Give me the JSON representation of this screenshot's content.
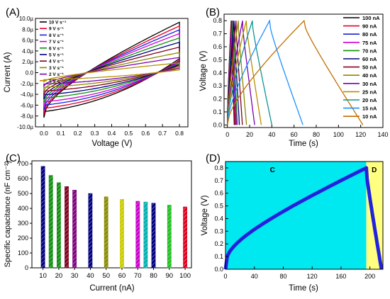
{
  "chart_data": [
    {
      "panel_label": "(A)",
      "type": "line",
      "xlabel": "Voltage (V)",
      "ylabel": "Current (A)",
      "xlim": [
        -0.05,
        0.85
      ],
      "ylim": [
        -10,
        10
      ],
      "xticks": [
        "0.0",
        "0.1",
        "0.2",
        "0.3",
        "0.4",
        "0.5",
        "0.6",
        "0.7",
        "0.8"
      ],
      "yticks": [
        "10.0µ",
        "8.0µ",
        "6.0µ",
        "4.0µ",
        "2.0µ",
        "0.0",
        "-2.0µ",
        "-4.0µ",
        "-6.0µ",
        "-8.0µ",
        "-10.0µ"
      ],
      "ytick_values": [
        10,
        8,
        6,
        4,
        2,
        0,
        -2,
        -4,
        -6,
        -8,
        -10
      ],
      "legend_position": "top-left",
      "series": [
        {
          "name": "10 V s⁻¹",
          "color": "#000000",
          "upper_max": 9.3,
          "upper_min": -8.3,
          "lower_max": 2.6,
          "lower_min": -7.2
        },
        {
          "name": "9 V s⁻¹",
          "color": "#e8002a",
          "upper_max": 8.6,
          "upper_min": -7.7,
          "lower_max": 2.3,
          "lower_min": -6.6
        },
        {
          "name": "8 V s⁻¹",
          "color": "#1a22d6",
          "upper_max": 7.9,
          "upper_min": -7.0,
          "lower_max": 2.1,
          "lower_min": -6.0
        },
        {
          "name": "7 V s⁻¹",
          "color": "#d400d4",
          "upper_max": 7.2,
          "upper_min": -6.3,
          "lower_max": 1.9,
          "lower_min": -5.4
        },
        {
          "name": "6 V s⁻¹",
          "color": "#109010",
          "upper_max": 6.4,
          "upper_min": -5.6,
          "lower_max": 1.7,
          "lower_min": -4.7
        },
        {
          "name": "5 V s⁻¹",
          "color": "#000080",
          "upper_max": 5.6,
          "upper_min": -4.9,
          "lower_max": 1.5,
          "lower_min": -4.1
        },
        {
          "name": "4 V s⁻¹",
          "color": "#800020",
          "upper_max": 4.7,
          "upper_min": -4.1,
          "lower_max": 1.3,
          "lower_min": -3.4
        },
        {
          "name": "3 V s⁻¹",
          "color": "#8a8a00",
          "upper_max": 3.7,
          "upper_min": -3.3,
          "lower_max": 1.0,
          "lower_min": -2.7
        },
        {
          "name": "2 V s⁻¹",
          "color": "#7b00b0",
          "upper_max": 2.8,
          "upper_min": -2.5,
          "lower_max": 0.8,
          "lower_min": -2.1
        },
        {
          "name": "1 V s⁻¹",
          "color": "#b89000",
          "upper_max": 1.8,
          "upper_min": -1.7,
          "lower_max": 0.5,
          "lower_min": -1.3
        }
      ]
    },
    {
      "panel_label": "(B)",
      "type": "line",
      "xlabel": "Time (s)",
      "ylabel": "Voltage (V)",
      "xlim": [
        -3,
        140
      ],
      "ylim": [
        -0.02,
        0.85
      ],
      "xticks": [
        0,
        20,
        40,
        60,
        80,
        100,
        120,
        140
      ],
      "yticks": [
        0.0,
        0.1,
        0.2,
        0.3,
        0.4,
        0.5,
        0.6,
        0.7,
        0.8
      ],
      "legend_position": "top-right",
      "series": [
        {
          "name": "100 nA",
          "color": "#000000",
          "t_peak": 3.4,
          "t_end": 6.2
        },
        {
          "name": "90 nA",
          "color": "#e8002a",
          "t_peak": 3.8,
          "t_end": 6.8
        },
        {
          "name": "80 nA",
          "color": "#1a22d6",
          "t_peak": 4.3,
          "t_end": 7.6
        },
        {
          "name": "75 nA",
          "color": "#d400d4",
          "t_peak": 4.6,
          "t_end": 8.2
        },
        {
          "name": "70 nA",
          "color": "#109010",
          "t_peak": 5.1,
          "t_end": 9.0
        },
        {
          "name": "60 nA",
          "color": "#000080",
          "t_peak": 6.0,
          "t_end": 10.8
        },
        {
          "name": "50 nA",
          "color": "#800020",
          "t_peak": 7.7,
          "t_end": 13.5
        },
        {
          "name": "40 nA",
          "color": "#8a8a00",
          "t_peak": 9.8,
          "t_end": 17.2
        },
        {
          "name": "30 nA",
          "color": "#7b00b0",
          "t_peak": 13.6,
          "t_end": 24.5
        },
        {
          "name": "25 nA",
          "color": "#b89000",
          "t_peak": 17.0,
          "t_end": 30.5
        },
        {
          "name": "20 nA",
          "color": "#0e9494",
          "t_peak": 22.5,
          "t_end": 40.0
        },
        {
          "name": "15 nA",
          "color": "#1e90ff",
          "t_peak": 38.0,
          "t_end": 68.0
        },
        {
          "name": "10 nA",
          "color": "#c07000",
          "t_peak": 69.0,
          "t_end": 122.0
        }
      ]
    },
    {
      "panel_label": "(C)",
      "type": "bar",
      "xlabel": "Current (nA)",
      "ylabel": "Specific capacitance (nF cm⁻²)",
      "ylim": [
        0,
        720
      ],
      "yticks": [
        0,
        100,
        200,
        300,
        400,
        500,
        600,
        700
      ],
      "xticks": [
        10,
        20,
        30,
        40,
        50,
        60,
        70,
        80,
        90,
        100
      ],
      "xlim": [
        3,
        104
      ],
      "categories": [
        10,
        15,
        20,
        25,
        30,
        40,
        50,
        60,
        70,
        75,
        80,
        90,
        100
      ],
      "values": [
        683,
        622,
        573,
        547,
        523,
        500,
        478,
        461,
        448,
        443,
        435,
        422,
        410
      ],
      "colors": [
        "#000080",
        "#109010",
        "#109010",
        "#800020",
        "#800080",
        "#000080",
        "#8a8a00",
        "#cccc00",
        "#cc00cc",
        "#00b0b0",
        "#000080",
        "#20c020",
        "#e00020"
      ]
    },
    {
      "panel_label": "(D)",
      "type": "line",
      "xlabel": "Time (s)",
      "ylabel": "Voltage (V)",
      "xlim": [
        0,
        218
      ],
      "ylim": [
        0,
        0.85
      ],
      "xticks": [
        0,
        40,
        80,
        120,
        160,
        200
      ],
      "yticks": [
        0.0,
        0.1,
        0.2,
        0.3,
        0.4,
        0.5,
        0.6,
        0.7,
        0.8
      ],
      "region_labels": [
        "C",
        "D"
      ],
      "region_split_time": 195,
      "series": [
        {
          "name": "",
          "color": "#2222dd",
          "t_peak": 195,
          "v_peak": 0.8,
          "t_end": 216
        }
      ],
      "region_colors": {
        "charge": "#00e8f0",
        "discharge": "#ffff80"
      }
    }
  ]
}
